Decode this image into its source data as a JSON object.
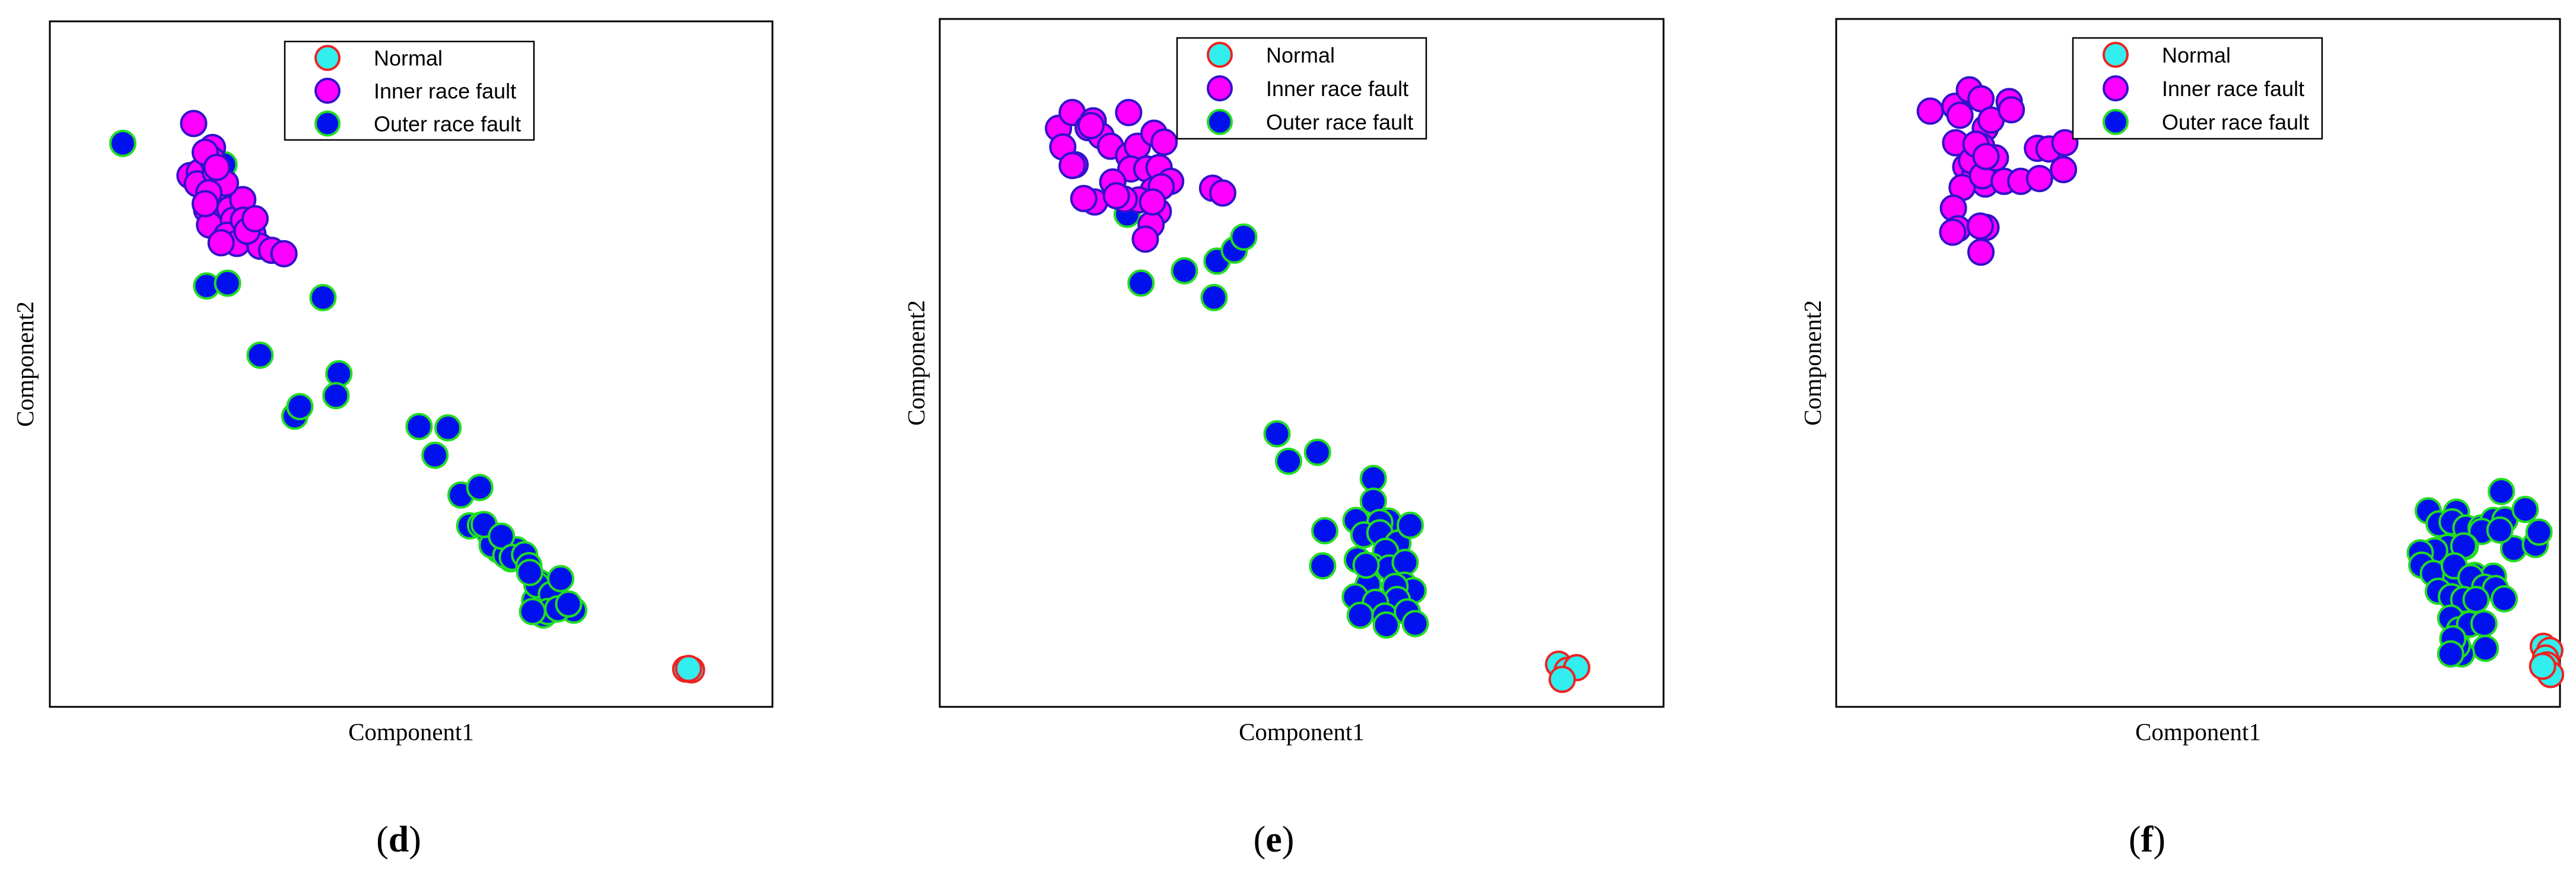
{
  "series_styles": {
    "normal": {
      "fill": "#33eeee",
      "stroke": "#ee2222"
    },
    "inner": {
      "fill": "#ff00ff",
      "stroke": "#3311cc"
    },
    "outer": {
      "fill": "#0011ee",
      "stroke": "#22dd22"
    }
  },
  "chart_data": [
    {
      "type": "scatter",
      "panel_label": "(d)",
      "xlabel": "Component1",
      "ylabel": "Component2",
      "xlim": [
        0,
        100
      ],
      "ylim": [
        0,
        100
      ],
      "legend": {
        "position": "top-center",
        "entries": [
          "Normal",
          "Inner race fault",
          "Outer race fault"
        ]
      },
      "series": [
        {
          "name": "Normal",
          "style": "normal",
          "points": [
            [
              88.0,
              5.5
            ],
            [
              88.8,
              5.4
            ],
            [
              88.4,
              5.6
            ]
          ]
        },
        {
          "name": "Inner race fault",
          "style": "inner",
          "points": [
            [
              19.9,
              85.1
            ],
            [
              22.5,
              81.6
            ],
            [
              19.4,
              77.5
            ],
            [
              20.7,
              78.0
            ],
            [
              22.5,
              79.8
            ],
            [
              21.5,
              80.9
            ],
            [
              20.4,
              76.3
            ],
            [
              21.7,
              72.5
            ],
            [
              22.1,
              70.3
            ],
            [
              23.4,
              74.9
            ],
            [
              24.9,
              72.6
            ],
            [
              25.4,
              71.0
            ],
            [
              24.5,
              68.8
            ],
            [
              25.9,
              67.6
            ],
            [
              26.7,
              74.0
            ],
            [
              28.1,
              69.0
            ],
            [
              29.1,
              67.2
            ],
            [
              30.7,
              66.6
            ],
            [
              32.4,
              66.1
            ],
            [
              23.7,
              67.7
            ],
            [
              22.9,
              78.0
            ],
            [
              26.8,
              71.0
            ],
            [
              24.3,
              76.4
            ],
            [
              22.0,
              75.0
            ],
            [
              21.5,
              73.4
            ],
            [
              27.3,
              69.4
            ],
            [
              28.4,
              71.2
            ],
            [
              23.1,
              78.7
            ]
          ]
        },
        {
          "name": "Outer race fault",
          "style": "outer",
          "points": [
            [
              10.1,
              82.2
            ],
            [
              24.1,
              79.1
            ],
            [
              21.7,
              61.4
            ],
            [
              24.6,
              61.8
            ],
            [
              37.8,
              59.7
            ],
            [
              29.1,
              51.3
            ],
            [
              40.0,
              48.6
            ],
            [
              39.6,
              45.4
            ],
            [
              33.9,
              42.4
            ],
            [
              34.6,
              43.8
            ],
            [
              51.1,
              40.9
            ],
            [
              55.1,
              40.7
            ],
            [
              53.3,
              36.7
            ],
            [
              56.9,
              30.9
            ],
            [
              59.5,
              32.0
            ],
            [
              58.1,
              26.4
            ],
            [
              62.1,
              22.9
            ],
            [
              63.8,
              21.6
            ],
            [
              59.6,
              26.5
            ],
            [
              60.8,
              25.4
            ],
            [
              61.2,
              23.6
            ],
            [
              63.1,
              22.1
            ],
            [
              64.6,
              22.9
            ],
            [
              60.1,
              26.6
            ],
            [
              62.5,
              24.9
            ],
            [
              64.0,
              21.8
            ],
            [
              65.7,
              22.2
            ],
            [
              66.3,
              20.6
            ],
            [
              67.8,
              18.1
            ],
            [
              67.1,
              15.5
            ],
            [
              68.3,
              13.4
            ],
            [
              67.4,
              17.8
            ],
            [
              69.4,
              16.4
            ],
            [
              70.7,
              18.7
            ],
            [
              72.5,
              14.1
            ],
            [
              68.9,
              13.9
            ],
            [
              70.3,
              14.3
            ],
            [
              71.8,
              15.0
            ],
            [
              66.4,
              19.6
            ],
            [
              66.8,
              13.9
            ]
          ]
        }
      ]
    },
    {
      "type": "scatter",
      "panel_label": "(e)",
      "xlabel": "Component1",
      "ylabel": "Component2",
      "xlim": [
        0,
        100
      ],
      "ylim": [
        0,
        100
      ],
      "legend": {
        "position": "top-center",
        "entries": [
          "Normal",
          "Inner race fault",
          "Outer race fault"
        ]
      },
      "series": [
        {
          "name": "Normal",
          "style": "normal",
          "points": [
            [
              85.5,
              6.2
            ],
            [
              86.7,
              5.3
            ],
            [
              88.0,
              5.7
            ],
            [
              86.0,
              4.0
            ]
          ]
        },
        {
          "name": "Inner race fault",
          "style": "inner",
          "points": [
            [
              16.4,
              84.1
            ],
            [
              18.3,
              86.4
            ],
            [
              21.2,
              85.2
            ],
            [
              17.0,
              81.4
            ],
            [
              18.7,
              78.8
            ],
            [
              20.5,
              84.2
            ],
            [
              22.3,
              83.0
            ],
            [
              23.6,
              81.5
            ],
            [
              26.1,
              80.1
            ],
            [
              27.3,
              81.5
            ],
            [
              26.4,
              78.2
            ],
            [
              28.6,
              78.2
            ],
            [
              30.3,
              78.4
            ],
            [
              31.9,
              76.4
            ],
            [
              29.5,
              75.1
            ],
            [
              30.2,
              72.0
            ],
            [
              29.2,
              70.1
            ],
            [
              28.4,
              68.0
            ],
            [
              30.6,
              75.6
            ],
            [
              27.5,
              73.7
            ],
            [
              23.9,
              76.3
            ],
            [
              21.4,
              73.4
            ],
            [
              19.9,
              73.9
            ],
            [
              18.3,
              78.7
            ],
            [
              25.5,
              73.8
            ],
            [
              29.4,
              73.4
            ],
            [
              37.7,
              75.4
            ],
            [
              39.1,
              74.7
            ],
            [
              26.1,
              86.4
            ],
            [
              29.6,
              83.4
            ],
            [
              31.0,
              82.1
            ],
            [
              20.9,
              84.5
            ],
            [
              24.4,
              74.3
            ]
          ]
        },
        {
          "name": "Outer race fault",
          "style": "outer",
          "points": [
            [
              25.9,
              71.6
            ],
            [
              33.8,
              63.4
            ],
            [
              38.3,
              64.8
            ],
            [
              40.7,
              66.4
            ],
            [
              42.0,
              68.3
            ],
            [
              37.9,
              59.5
            ],
            [
              27.8,
              61.6
            ],
            [
              46.6,
              39.7
            ],
            [
              52.2,
              37.0
            ],
            [
              48.2,
              35.7
            ],
            [
              59.9,
              33.2
            ],
            [
              59.9,
              29.9
            ],
            [
              57.5,
              27.1
            ],
            [
              62.0,
              27.0
            ],
            [
              60.8,
              26.8
            ],
            [
              53.2,
              25.6
            ],
            [
              58.6,
              25.0
            ],
            [
              60.8,
              25.3
            ],
            [
              63.3,
              23.8
            ],
            [
              65.0,
              26.4
            ],
            [
              61.6,
              22.6
            ],
            [
              57.7,
              21.4
            ],
            [
              59.8,
              20.4
            ],
            [
              62.1,
              20.2
            ],
            [
              64.3,
              21.0
            ],
            [
              64.2,
              17.7
            ],
            [
              65.4,
              16.9
            ],
            [
              62.9,
              17.5
            ],
            [
              63.2,
              15.6
            ],
            [
              59.2,
              17.8
            ],
            [
              57.4,
              16.0
            ],
            [
              60.2,
              15.2
            ],
            [
              58.1,
              13.3
            ],
            [
              61.5,
              13.2
            ],
            [
              64.6,
              13.8
            ],
            [
              61.7,
              11.9
            ],
            [
              65.7,
              12.1
            ],
            [
              58.9,
              20.6
            ],
            [
              52.9,
              20.5
            ]
          ]
        }
      ]
    },
    {
      "type": "scatter",
      "panel_label": "(f)",
      "xlabel": "Component1",
      "ylabel": "Component2",
      "xlim": [
        0,
        100
      ],
      "ylim": [
        0,
        100
      ],
      "legend": {
        "position": "top-center",
        "entries": [
          "Normal",
          "Inner race fault",
          "Outer race fault"
        ]
      },
      "series": [
        {
          "name": "Normal",
          "style": "normal",
          "points": [
            [
              97.7,
              8.8
            ],
            [
              98.6,
              8.2
            ],
            [
              98.0,
              7.1
            ],
            [
              98.2,
              6.1
            ],
            [
              98.7,
              4.7
            ],
            [
              97.6,
              5.9
            ]
          ]
        },
        {
          "name": "Inner race fault",
          "style": "inner",
          "points": [
            [
              13.0,
              86.6
            ],
            [
              16.4,
              87.3
            ],
            [
              18.4,
              89.7
            ],
            [
              17.1,
              86.0
            ],
            [
              20.0,
              88.4
            ],
            [
              20.6,
              84.1
            ],
            [
              21.4,
              85.3
            ],
            [
              23.9,
              88.0
            ],
            [
              20.1,
              81.5
            ],
            [
              16.5,
              82.0
            ],
            [
              19.4,
              80.9
            ],
            [
              17.9,
              78.5
            ],
            [
              20.3,
              78.7
            ],
            [
              19.2,
              77.6
            ],
            [
              20.6,
              76.0
            ],
            [
              17.4,
              75.5
            ],
            [
              16.2,
              72.5
            ],
            [
              18.7,
              79.4
            ],
            [
              20.2,
              77.2
            ],
            [
              22.0,
              79.8
            ],
            [
              23.2,
              76.4
            ],
            [
              25.5,
              76.4
            ],
            [
              27.8,
              81.2
            ],
            [
              28.1,
              76.8
            ],
            [
              29.4,
              81.1
            ],
            [
              31.4,
              78.1
            ],
            [
              31.6,
              82.0
            ],
            [
              24.2,
              86.8
            ],
            [
              19.3,
              81.8
            ],
            [
              20.7,
              80.0
            ],
            [
              16.8,
              69.5
            ],
            [
              20.0,
              66.1
            ],
            [
              20.7,
              69.7
            ],
            [
              16.1,
              69.0
            ],
            [
              19.9,
              69.9
            ]
          ]
        },
        {
          "name": "Outer race fault",
          "style": "outer",
          "points": [
            [
              81.8,
              28.5
            ],
            [
              85.7,
              28.3
            ],
            [
              83.3,
              26.6
            ],
            [
              85.1,
              26.9
            ],
            [
              87.0,
              26.0
            ],
            [
              89.1,
              26.0
            ],
            [
              90.8,
              27.1
            ],
            [
              92.4,
              27.2
            ],
            [
              95.2,
              28.7
            ],
            [
              91.9,
              31.3
            ],
            [
              89.2,
              25.5
            ],
            [
              86.9,
              23.3
            ],
            [
              84.5,
              23.2
            ],
            [
              82.7,
              22.7
            ],
            [
              80.7,
              22.4
            ],
            [
              80.9,
              20.6
            ],
            [
              82.5,
              19.4
            ],
            [
              85.6,
              18.9
            ],
            [
              88.2,
              19.1
            ],
            [
              90.8,
              19.0
            ],
            [
              93.6,
              23.0
            ],
            [
              96.6,
              23.6
            ],
            [
              97.1,
              25.4
            ],
            [
              91.7,
              25.7
            ],
            [
              86.7,
              23.4
            ],
            [
              85.4,
              20.5
            ],
            [
              87.7,
              18.8
            ],
            [
              83.2,
              16.8
            ],
            [
              85.0,
              16.0
            ],
            [
              86.7,
              15.6
            ],
            [
              89.6,
              17.4
            ],
            [
              91.1,
              17.2
            ],
            [
              92.3,
              15.7
            ],
            [
              88.4,
              15.6
            ],
            [
              84.9,
              12.9
            ],
            [
              86.1,
              11.2
            ],
            [
              87.5,
              12.0
            ],
            [
              89.5,
              12.1
            ],
            [
              89.7,
              8.5
            ],
            [
              86.4,
              7.7
            ],
            [
              85.8,
              8.9
            ],
            [
              85.2,
              9.9
            ],
            [
              84.9,
              7.7
            ]
          ]
        }
      ]
    }
  ]
}
